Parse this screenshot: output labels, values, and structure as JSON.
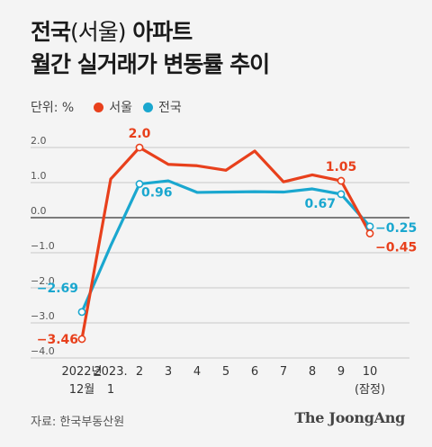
{
  "header": {
    "title_line1_a": "전국",
    "title_line1_paren": "(서울)",
    "title_line1_b": " 아파트",
    "title_line2": "월간 실거래가 변동률 추이"
  },
  "legend": {
    "unit": "단위: %",
    "items": [
      {
        "label": "서울",
        "color": "#e8401c"
      },
      {
        "label": "전국",
        "color": "#1aa7cf"
      }
    ]
  },
  "footer": {
    "source": "자료: 한국부동산원",
    "logo": "The JoongAng"
  },
  "chart_data": {
    "type": "line",
    "title": "전국(서울) 아파트 월간 실거래가 변동률 추이",
    "unit": "단위: %",
    "categories": [
      {
        "line1": "2022년",
        "line2": "12월"
      },
      {
        "line1": "2023.",
        "line2": "1"
      },
      {
        "line1": "2",
        "line2": ""
      },
      {
        "line1": "3",
        "line2": ""
      },
      {
        "line1": "4",
        "line2": ""
      },
      {
        "line1": "5",
        "line2": ""
      },
      {
        "line1": "6",
        "line2": ""
      },
      {
        "line1": "7",
        "line2": ""
      },
      {
        "line1": "8",
        "line2": ""
      },
      {
        "line1": "9",
        "line2": ""
      },
      {
        "line1": "10",
        "line2": "(잠정)"
      }
    ],
    "series": [
      {
        "name": "서울",
        "color": "#e8401c",
        "values": [
          -3.46,
          1.1,
          2.0,
          1.52,
          1.48,
          1.35,
          1.9,
          1.02,
          1.22,
          1.05,
          -0.45
        ],
        "labels": [
          {
            "index": 0,
            "text": "−3.46"
          },
          {
            "index": 2,
            "text": "2.0"
          },
          {
            "index": 9,
            "text": "1.05"
          },
          {
            "index": 10,
            "text": "−0.45"
          }
        ]
      },
      {
        "name": "전국",
        "color": "#1aa7cf",
        "values": [
          -2.69,
          -0.8,
          0.96,
          1.05,
          0.72,
          0.73,
          0.74,
          0.73,
          0.82,
          0.67,
          -0.25
        ],
        "labels": [
          {
            "index": 0,
            "text": "−2.69"
          },
          {
            "index": 2,
            "text": "0.96"
          },
          {
            "index": 9,
            "text": "0.67"
          },
          {
            "index": 10,
            "text": "−0.25"
          }
        ]
      }
    ],
    "markers": [
      0,
      2,
      9,
      10
    ],
    "yticks": [
      2.0,
      1.0,
      0.0,
      -1.0,
      -2.0,
      -3.0,
      -4.0
    ],
    "ytick_labels": [
      "2.0",
      "1.0",
      "0.0",
      "−1.0",
      "−2.0",
      "−3.0",
      "−4.0"
    ],
    "ylim": [
      -4.0,
      2.0
    ],
    "grid": true
  }
}
